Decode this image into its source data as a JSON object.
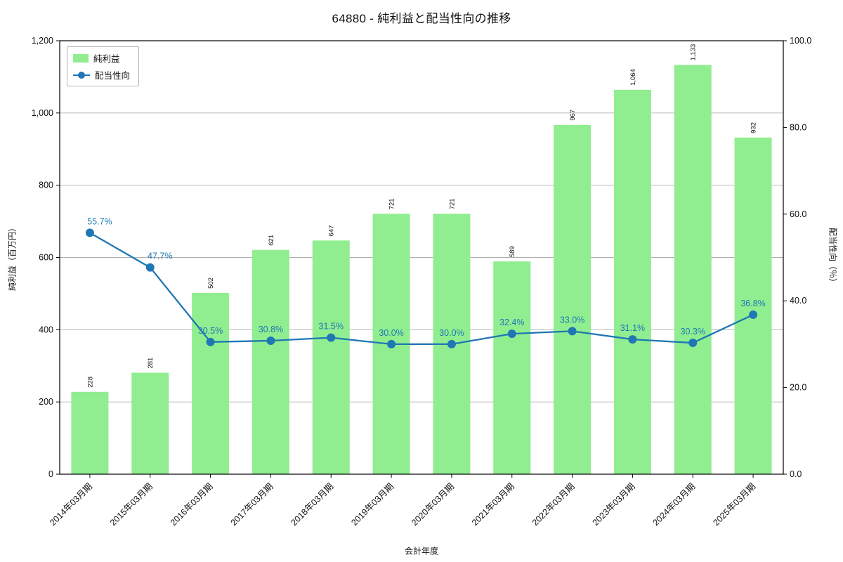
{
  "chart_data": {
    "type": "bar",
    "title": "64880 - 純利益と配当性向の推移",
    "xlabel": "会計年度",
    "ylabel_left": "純利益（百万円）",
    "ylabel_right": "配当性向（％）",
    "categories": [
      "2014年03月期",
      "2015年03月期",
      "2016年03月期",
      "2017年03月期",
      "2018年03月期",
      "2019年03月期",
      "2020年03月期",
      "2021年03月期",
      "2022年03月期",
      "2023年03月期",
      "2024年03月期",
      "2025年03月期"
    ],
    "series": [
      {
        "name": "純利益",
        "type": "bar",
        "color": "#90ee90",
        "axis": "left",
        "values": [
          228,
          281,
          502,
          621,
          647,
          721,
          721,
          589,
          967,
          1064,
          1133,
          932
        ]
      },
      {
        "name": "配当性向",
        "type": "line",
        "color": "#1f77b4",
        "axis": "right",
        "values": [
          55.7,
          47.7,
          30.5,
          30.8,
          31.5,
          30.0,
          30.0,
          32.4,
          33.0,
          31.1,
          30.3,
          36.8
        ]
      }
    ],
    "axis_left": {
      "min": 0,
      "max": 1200,
      "ticks": [
        0,
        200,
        400,
        600,
        800,
        1000,
        1200
      ]
    },
    "axis_right": {
      "min": 0,
      "max": 100,
      "ticks": [
        0,
        20,
        40,
        60,
        80,
        100
      ]
    },
    "legend_position": "top-left",
    "grid": true,
    "grid_color": "#b0b0b0",
    "background": "#ffffff"
  }
}
